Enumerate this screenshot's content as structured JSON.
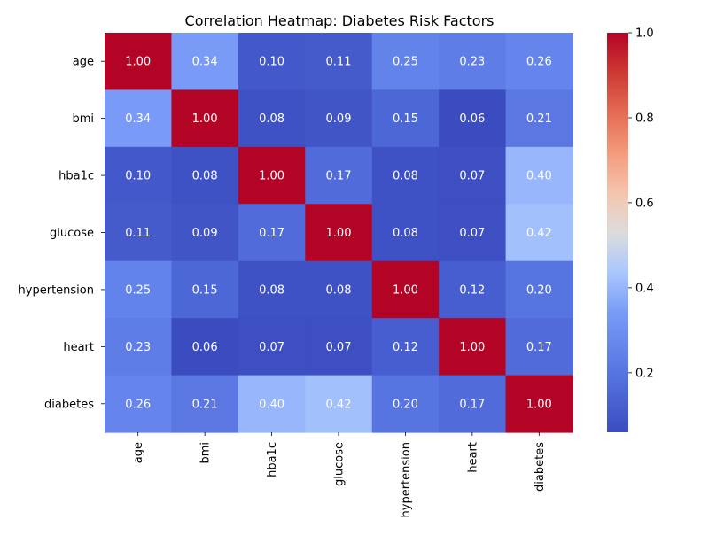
{
  "chart_data": {
    "type": "heatmap",
    "title": "Correlation Heatmap: Diabetes Risk Factors",
    "xlabel": "",
    "ylabel": "",
    "row_labels": [
      "age",
      "bmi",
      "hba1c",
      "glucose",
      "hypertension",
      "heart",
      "diabetes"
    ],
    "col_labels": [
      "age",
      "bmi",
      "hba1c",
      "glucose",
      "hypertension",
      "heart",
      "diabetes"
    ],
    "values": [
      [
        1.0,
        0.34,
        0.1,
        0.11,
        0.25,
        0.23,
        0.26
      ],
      [
        0.34,
        1.0,
        0.08,
        0.09,
        0.15,
        0.06,
        0.21
      ],
      [
        0.1,
        0.08,
        1.0,
        0.17,
        0.08,
        0.07,
        0.4
      ],
      [
        0.11,
        0.09,
        0.17,
        1.0,
        0.08,
        0.07,
        0.42
      ],
      [
        0.25,
        0.15,
        0.08,
        0.08,
        1.0,
        0.12,
        0.2
      ],
      [
        0.23,
        0.06,
        0.07,
        0.07,
        0.12,
        1.0,
        0.17
      ],
      [
        0.26,
        0.21,
        0.4,
        0.42,
        0.2,
        0.17,
        1.0
      ]
    ],
    "value_format": "2 decimals",
    "colormap": "coolwarm",
    "colorbar": {
      "range": [
        0.06,
        1.0
      ],
      "ticks": [
        "0.2",
        "0.4",
        "0.6",
        "0.8",
        "1.0"
      ],
      "tick_values": [
        0.2,
        0.4,
        0.6,
        0.8,
        1.0
      ]
    },
    "colors": {
      "low": "#3b4cc0",
      "mid": "#dddddd",
      "high": "#b40426"
    }
  }
}
